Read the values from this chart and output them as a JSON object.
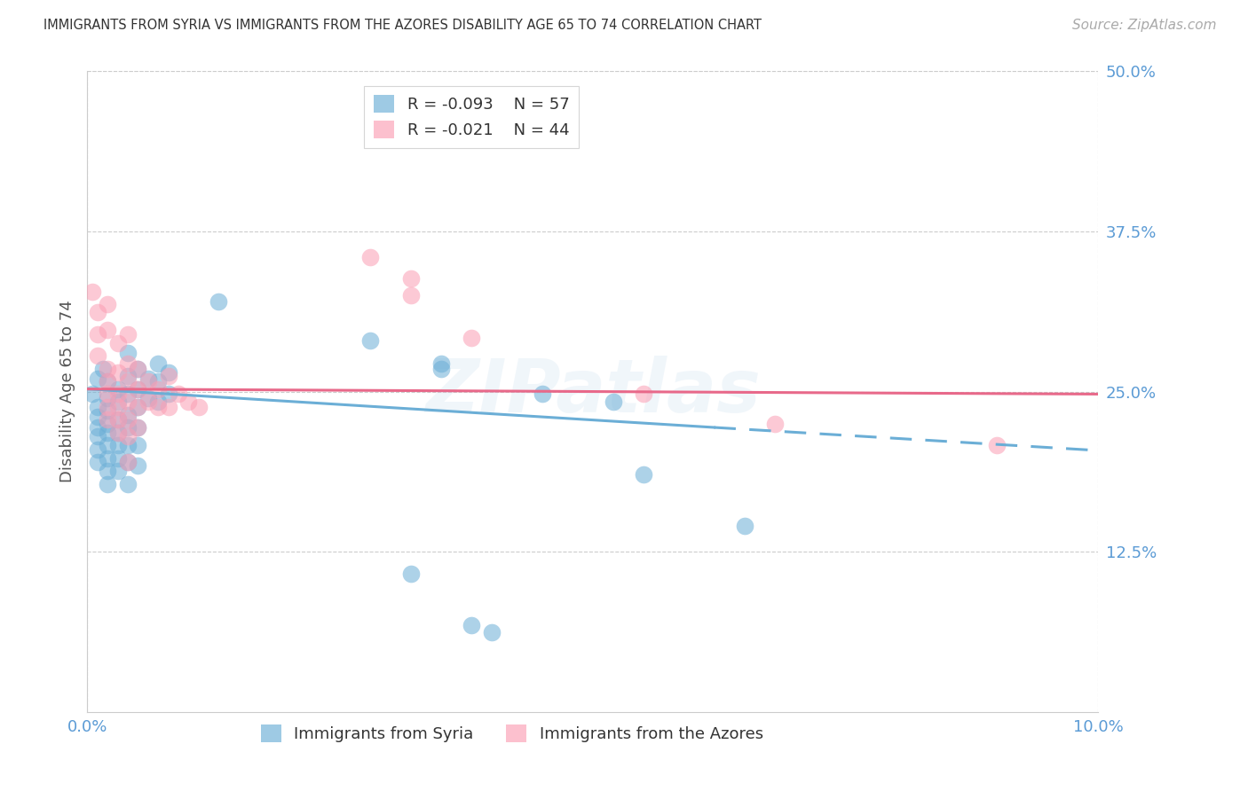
{
  "title": "IMMIGRANTS FROM SYRIA VS IMMIGRANTS FROM THE AZORES DISABILITY AGE 65 TO 74 CORRELATION CHART",
  "source": "Source: ZipAtlas.com",
  "ylabel": "Disability Age 65 to 74",
  "xlim": [
    0.0,
    0.1
  ],
  "ylim": [
    0.0,
    0.5
  ],
  "yticks": [
    0.0,
    0.125,
    0.25,
    0.375,
    0.5
  ],
  "yticklabels": [
    "",
    "12.5%",
    "25.0%",
    "37.5%",
    "50.0%"
  ],
  "legend_r1": "R = -0.093",
  "legend_n1": "N = 57",
  "legend_r2": "R = -0.021",
  "legend_n2": "N = 44",
  "color_syria": "#6baed6",
  "color_azores": "#fb9eb4",
  "trendline_syria_solid": [
    [
      0.0,
      0.252
    ],
    [
      0.062,
      0.222
    ]
  ],
  "trendline_syria_dashed": [
    [
      0.062,
      0.222
    ],
    [
      0.1,
      0.204
    ]
  ],
  "trendline_azores": [
    [
      0.0,
      0.252
    ],
    [
      0.1,
      0.248
    ]
  ],
  "watermark": "ZIPatlas",
  "background_color": "#ffffff",
  "grid_color": "#cccccc",
  "title_color": "#333333",
  "axis_label_color": "#555555",
  "tick_color": "#5b9bd5",
  "syria_points": [
    [
      0.0005,
      0.248
    ],
    [
      0.001,
      0.26
    ],
    [
      0.001,
      0.238
    ],
    [
      0.001,
      0.23
    ],
    [
      0.001,
      0.222
    ],
    [
      0.001,
      0.215
    ],
    [
      0.001,
      0.205
    ],
    [
      0.001,
      0.195
    ],
    [
      0.0015,
      0.268
    ],
    [
      0.002,
      0.258
    ],
    [
      0.002,
      0.245
    ],
    [
      0.002,
      0.235
    ],
    [
      0.002,
      0.225
    ],
    [
      0.002,
      0.218
    ],
    [
      0.002,
      0.208
    ],
    [
      0.002,
      0.198
    ],
    [
      0.002,
      0.188
    ],
    [
      0.002,
      0.178
    ],
    [
      0.003,
      0.252
    ],
    [
      0.003,
      0.242
    ],
    [
      0.003,
      0.228
    ],
    [
      0.003,
      0.218
    ],
    [
      0.003,
      0.208
    ],
    [
      0.003,
      0.198
    ],
    [
      0.003,
      0.188
    ],
    [
      0.004,
      0.28
    ],
    [
      0.004,
      0.262
    ],
    [
      0.004,
      0.248
    ],
    [
      0.004,
      0.232
    ],
    [
      0.004,
      0.222
    ],
    [
      0.004,
      0.208
    ],
    [
      0.004,
      0.195
    ],
    [
      0.004,
      0.178
    ],
    [
      0.005,
      0.268
    ],
    [
      0.005,
      0.252
    ],
    [
      0.005,
      0.238
    ],
    [
      0.005,
      0.222
    ],
    [
      0.005,
      0.208
    ],
    [
      0.005,
      0.192
    ],
    [
      0.006,
      0.26
    ],
    [
      0.006,
      0.245
    ],
    [
      0.007,
      0.272
    ],
    [
      0.007,
      0.258
    ],
    [
      0.007,
      0.242
    ],
    [
      0.008,
      0.265
    ],
    [
      0.008,
      0.248
    ],
    [
      0.013,
      0.32
    ],
    [
      0.028,
      0.29
    ],
    [
      0.035,
      0.272
    ],
    [
      0.035,
      0.268
    ],
    [
      0.045,
      0.248
    ],
    [
      0.052,
      0.242
    ],
    [
      0.055,
      0.185
    ],
    [
      0.065,
      0.145
    ],
    [
      0.032,
      0.108
    ],
    [
      0.038,
      0.068
    ],
    [
      0.04,
      0.062
    ]
  ],
  "azores_points": [
    [
      0.0005,
      0.328
    ],
    [
      0.001,
      0.312
    ],
    [
      0.001,
      0.295
    ],
    [
      0.001,
      0.278
    ],
    [
      0.002,
      0.318
    ],
    [
      0.002,
      0.298
    ],
    [
      0.002,
      0.268
    ],
    [
      0.002,
      0.258
    ],
    [
      0.002,
      0.248
    ],
    [
      0.002,
      0.238
    ],
    [
      0.002,
      0.228
    ],
    [
      0.003,
      0.288
    ],
    [
      0.003,
      0.265
    ],
    [
      0.003,
      0.248
    ],
    [
      0.003,
      0.238
    ],
    [
      0.003,
      0.228
    ],
    [
      0.003,
      0.218
    ],
    [
      0.004,
      0.295
    ],
    [
      0.004,
      0.272
    ],
    [
      0.004,
      0.258
    ],
    [
      0.004,
      0.242
    ],
    [
      0.004,
      0.228
    ],
    [
      0.004,
      0.215
    ],
    [
      0.004,
      0.195
    ],
    [
      0.005,
      0.268
    ],
    [
      0.005,
      0.252
    ],
    [
      0.005,
      0.238
    ],
    [
      0.005,
      0.222
    ],
    [
      0.006,
      0.258
    ],
    [
      0.006,
      0.242
    ],
    [
      0.007,
      0.252
    ],
    [
      0.007,
      0.238
    ],
    [
      0.008,
      0.262
    ],
    [
      0.008,
      0.238
    ],
    [
      0.009,
      0.248
    ],
    [
      0.01,
      0.242
    ],
    [
      0.011,
      0.238
    ],
    [
      0.028,
      0.355
    ],
    [
      0.032,
      0.338
    ],
    [
      0.032,
      0.325
    ],
    [
      0.038,
      0.292
    ],
    [
      0.055,
      0.248
    ],
    [
      0.068,
      0.225
    ],
    [
      0.09,
      0.208
    ]
  ]
}
